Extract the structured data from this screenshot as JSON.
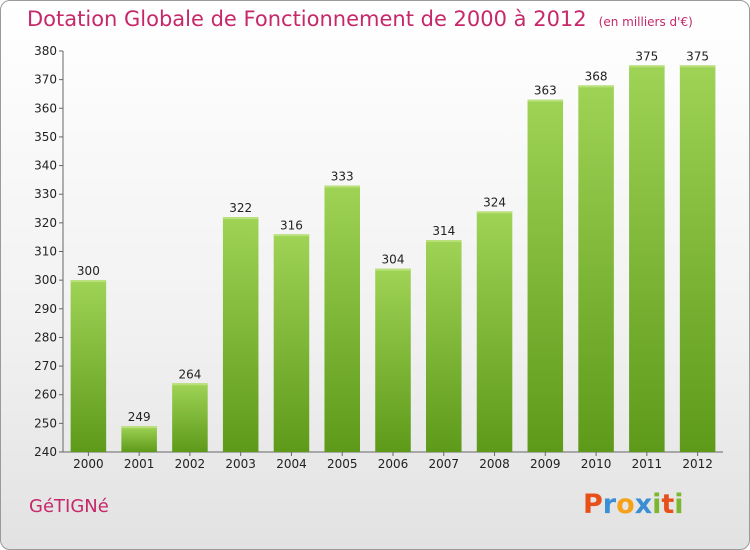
{
  "title": "Dotation Globale de Fonctionnement de 2000 à 2012",
  "unit": "(en milliers d'€)",
  "commune": "GéTIGNé",
  "logo": {
    "letters": [
      "P",
      "r",
      "o",
      "x",
      "i",
      "t",
      "i"
    ],
    "colors": [
      "#e8501a",
      "#3a8fd4",
      "#f4a21a",
      "#3a8fd4",
      "#7cb82f",
      "#e8501a",
      "#7cb82f"
    ]
  },
  "colors": {
    "bar_top": "#9fd356",
    "bar_bottom": "#5e9a1a",
    "title": "#c6286a"
  },
  "chart_data": {
    "type": "bar",
    "categories": [
      "2000",
      "2001",
      "2002",
      "2003",
      "2004",
      "2005",
      "2006",
      "2007",
      "2008",
      "2009",
      "2010",
      "2011",
      "2012"
    ],
    "values": [
      300,
      249,
      264,
      322,
      316,
      333,
      304,
      314,
      324,
      363,
      368,
      375,
      375
    ],
    "title": "Dotation Globale de Fonctionnement de 2000 à 2012",
    "xlabel": "",
    "ylabel": "",
    "ylim": [
      240,
      380
    ],
    "yticks": [
      240,
      250,
      260,
      270,
      280,
      290,
      300,
      310,
      320,
      330,
      340,
      350,
      360,
      370,
      380
    ],
    "grid": false,
    "legend": "none"
  }
}
